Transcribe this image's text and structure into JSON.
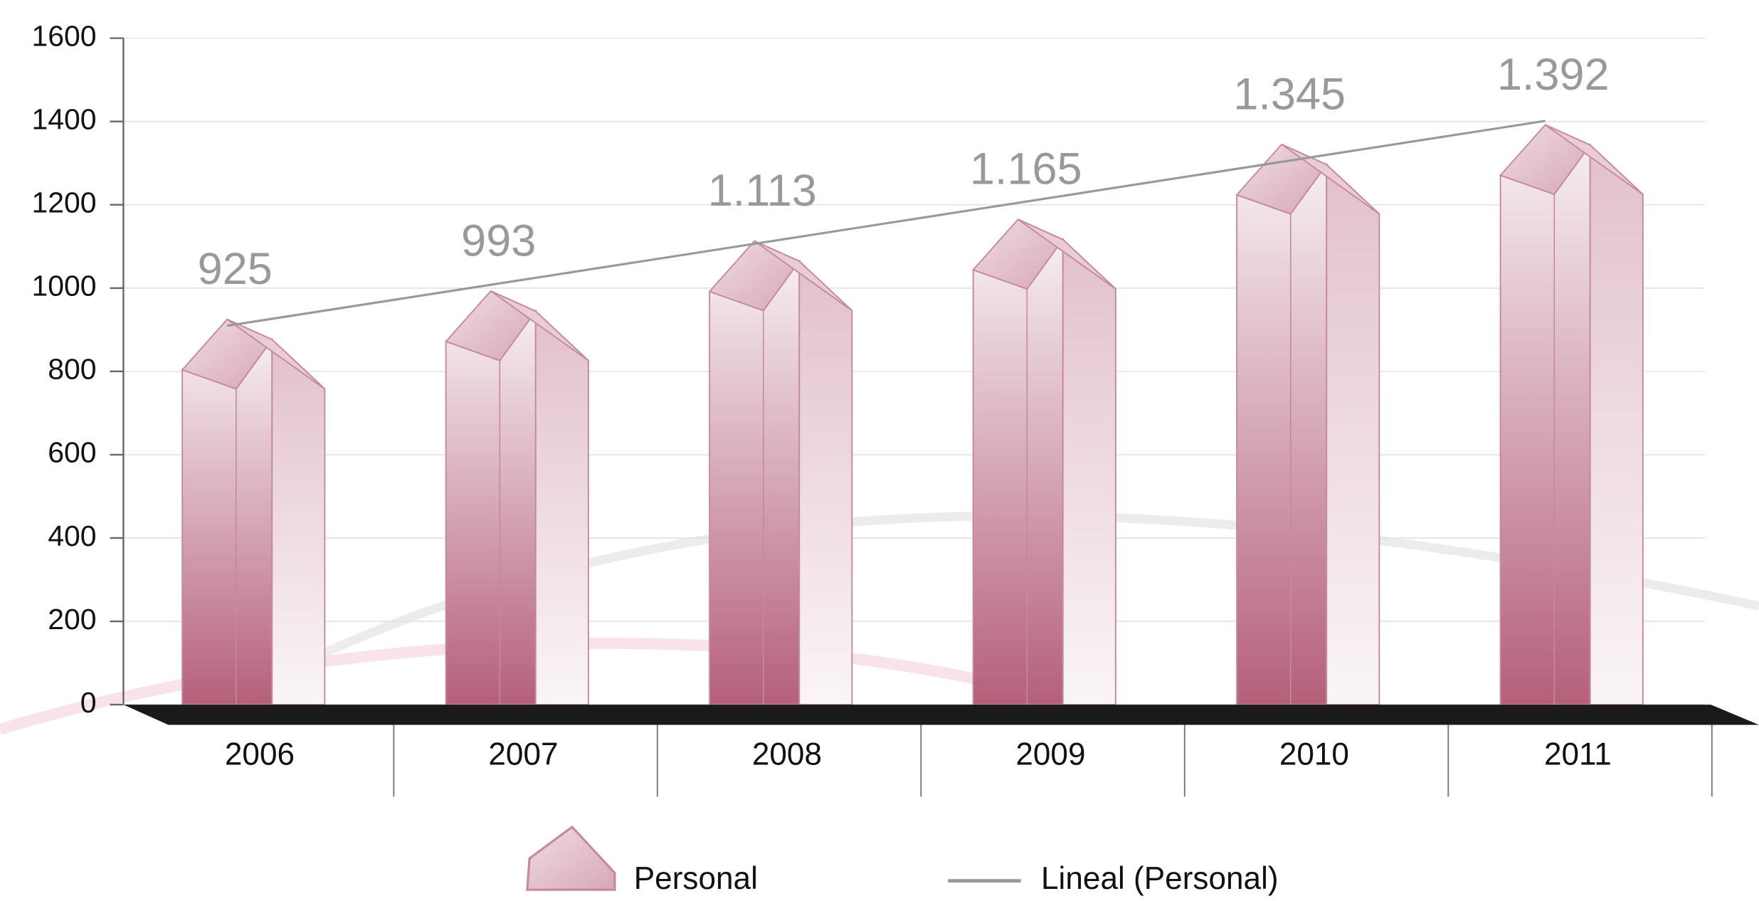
{
  "chart_data": {
    "type": "bar",
    "categories": [
      "2006",
      "2007",
      "2008",
      "2009",
      "2010",
      "2011"
    ],
    "series": [
      {
        "name": "Personal",
        "color": "#b5607a",
        "values": [
          925,
          993,
          1113,
          1165,
          1345,
          1392
        ],
        "value_labels": [
          "925",
          "993",
          "1.113",
          "1.165",
          "1.345",
          "1.392"
        ]
      }
    ],
    "trendline": {
      "name": "Lineal (Personal)",
      "color": "#999999"
    },
    "ylim": [
      0,
      1600
    ],
    "yticks": [
      0,
      200,
      400,
      600,
      800,
      1000,
      1200,
      1400,
      1600
    ],
    "grid": true
  }
}
